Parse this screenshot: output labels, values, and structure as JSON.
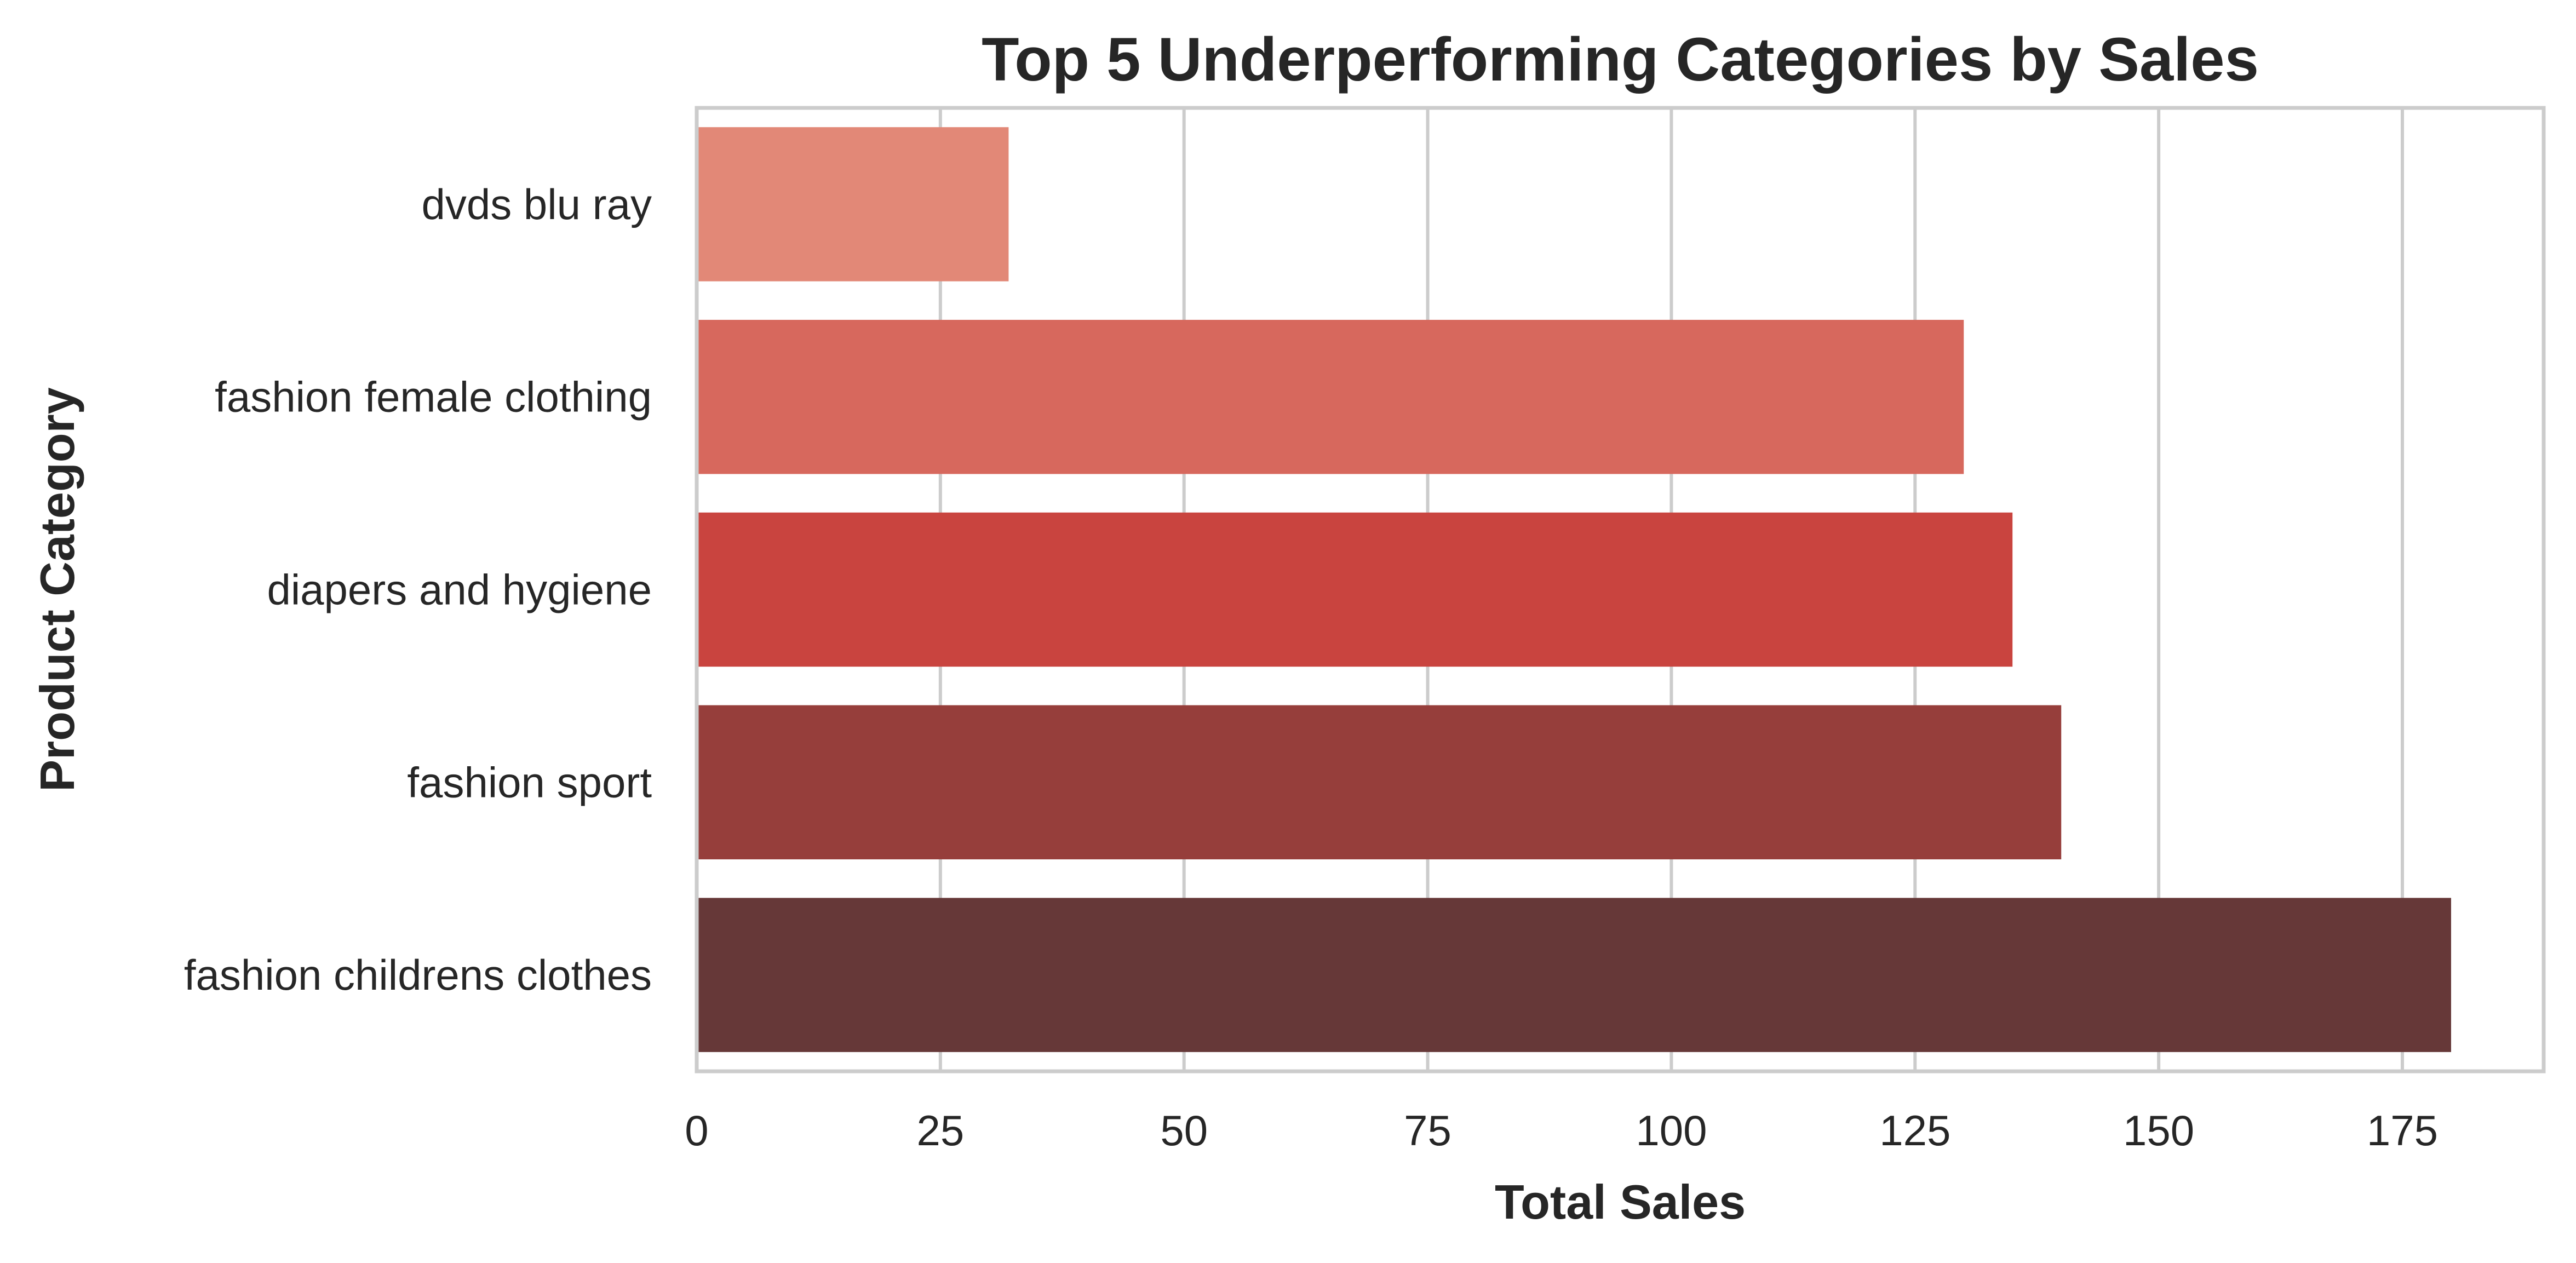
{
  "chart_data": {
    "type": "bar",
    "orientation": "horizontal",
    "title": "Top 5 Underperforming Categories by Sales",
    "xlabel": "Total Sales",
    "ylabel": "Product Category",
    "categories": [
      "dvds blu ray",
      "fashion female clothing",
      "diapers and hygiene",
      "fashion sport",
      "fashion childrens clothes"
    ],
    "values": [
      32,
      130,
      135,
      140,
      180
    ],
    "colors": [
      "#e28877",
      "#d7685d",
      "#c9443f",
      "#963e3b",
      "#663838"
    ],
    "xlim": [
      0,
      189.5
    ],
    "xticks": [
      0,
      25,
      50,
      75,
      100,
      125,
      150,
      175
    ],
    "grid": "vertical",
    "legend": "none"
  }
}
